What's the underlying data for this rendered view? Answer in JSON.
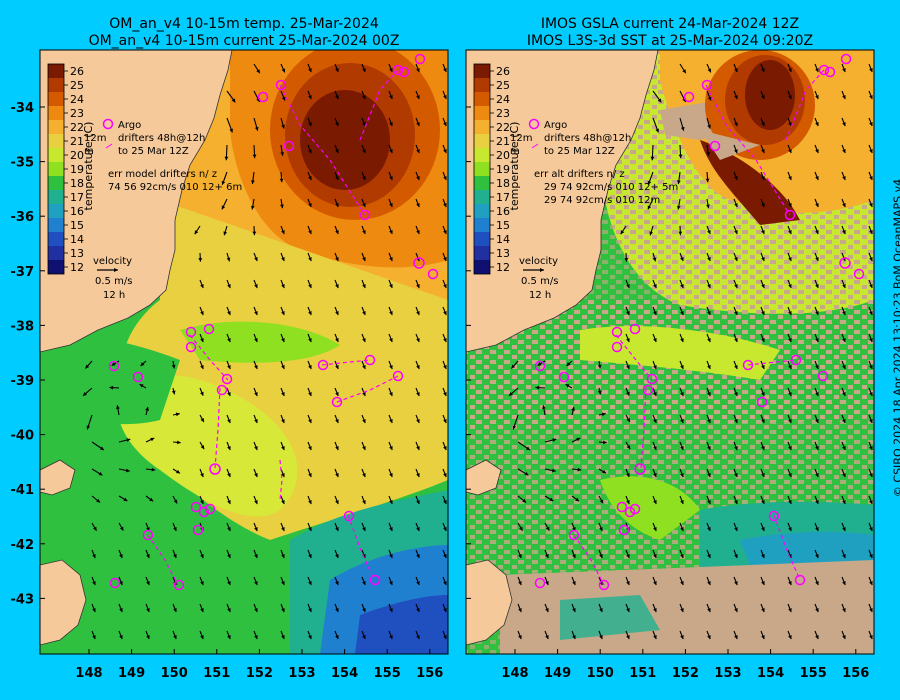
{
  "left_panel": {
    "title_line1": "OM_an_v4  10-15m temp. 25-Mar-2024",
    "title_line2": "OM_an_v4  10-15m current 25-Mar-2024 00Z",
    "legend": {
      "argo": "Argo",
      "drifters_line1": "drifters 48h@12h",
      "drifters_line2": "to 25 Mar 12Z",
      "depth_prefix": "12m",
      "depth_prefix2": "m",
      "err_header": "err model drifters n/ z",
      "err_row1": "74 56 92cm/s 010 12+ 6m"
    },
    "velocity_label": "velocity",
    "velocity_scale": "0.5 m/s",
    "velocity_time": "12 h"
  },
  "right_panel": {
    "title_line1": "IMOS GSLA current 24-Mar-2024 12Z",
    "title_line2": "IMOS L3S-3d SST at 25-Mar-2024 09:20Z",
    "legend": {
      "argo": "Argo",
      "drifters_line1": "drifters 48h@12h",
      "drifters_line2": "to 25 Mar 12Z",
      "depth_prefix": "12m",
      "depth_prefix2": "m",
      "err_header": "err alt drifters n/ z",
      "err_row1": "29 74 92cm/s 010 12+ 5m",
      "err_row2": "29 74 92cm/s 010 12m"
    },
    "velocity_label": "velocity",
    "velocity_scale": "0.5 m/s",
    "velocity_time": "12 h"
  },
  "colorbar": {
    "label": "temperature (C)",
    "ticks": [
      "26",
      "25",
      "24",
      "23",
      "22",
      "21",
      "20",
      "19",
      "18",
      "17",
      "16",
      "15",
      "14",
      "13",
      "12"
    ],
    "colors": [
      "#7a1a00",
      "#b03a00",
      "#d45a00",
      "#ee8a10",
      "#f5b030",
      "#e8d040",
      "#c8e830",
      "#8ee020",
      "#30c040",
      "#20b090",
      "#20a0c0",
      "#2080d0",
      "#2050c0",
      "#2030a0",
      "#101070"
    ]
  },
  "lat_ticks": [
    "-34",
    "-35",
    "-36",
    "-37",
    "-38",
    "-39",
    "-40",
    "-41",
    "-42",
    "-43"
  ],
  "lon_ticks": [
    "148",
    "149",
    "150",
    "151",
    "152",
    "153",
    "154",
    "155",
    "156"
  ],
  "credit": "© CSIRO 2024   18 Apr 2024 13:10:23 BoM OceanMAPS v4",
  "colors": {
    "background": "#00ccff",
    "land": "#f5c99a",
    "argo_marker": "#ff00ff",
    "drifter_track": "#ff00ff",
    "no_data": "#c8a888"
  }
}
